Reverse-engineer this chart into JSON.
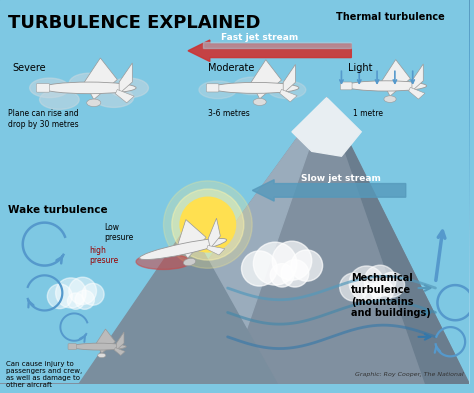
{
  "title": "TURBULENCE EXPLAINED",
  "bg_top": "#7EC8E3",
  "bg_bottom": "#A8D8EA",
  "title_color": "#000000",
  "title_fontsize": 13,
  "thermal_label": "Thermal turbulence",
  "fast_stream_label": "Fast jet stream",
  "slow_stream_label": "Slow jet stream",
  "severe_label": "Severe",
  "severe_sub": "Plane can rise and\ndrop by 30 metres",
  "moderate_label": "Moderate",
  "moderate_sub": "3-6 metres",
  "light_label": "Light",
  "light_sub": "1 metre",
  "wake_label": "Wake turbulence",
  "wake_low": "Low\npresure",
  "wake_high": "high\npresure",
  "wake_sub": "Can cause injury to\npassengers and crew,\nas well as damage to\nother aircraft",
  "mech_label": "Mechanical\nturbulence\n(mountains\nand buildings)",
  "credit": "Graphic: Roy Cooper, The National",
  "arrow_red": "#CC3333",
  "arrow_blue": "#5599CC",
  "mountain_dark": "#8899AA",
  "mountain_mid": "#9AABB8",
  "mountain_light": "#AABBC8",
  "snow_color": "#E8EEF2",
  "sun_yellow": "#FFE050",
  "sun_glow": "#FFF5AA",
  "cloud_white": "#DDEEFF",
  "wave_blue": "#5588AA",
  "plane_white": "#F0F0F0",
  "plane_gray": "#CCCCCC",
  "plane_edge": "#999999"
}
